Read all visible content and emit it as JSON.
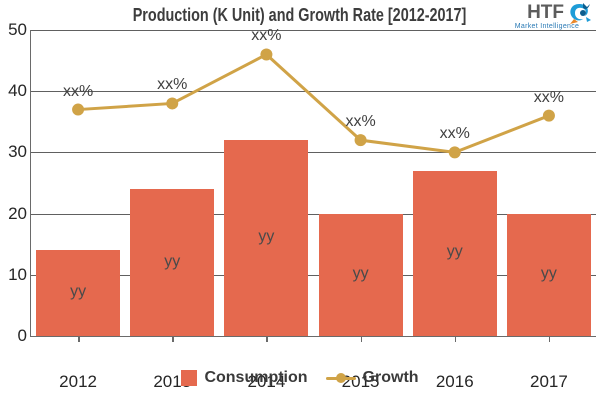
{
  "header": {
    "title": "Production (K Unit) and Growth Rate [2012-2017]"
  },
  "logo": {
    "text": "HTF",
    "subtext": "Market Intelligence",
    "icon": "htf-swirl-icon",
    "colors": {
      "text": "#5c5c5c",
      "subtext": "#2a7ab5",
      "icon_blue": "#1e9cd7",
      "icon_dark": "#0d5e8f",
      "icon_orange": "#e8872a"
    }
  },
  "chart_data": {
    "type": "bar",
    "subtype": "combo-bar-line",
    "title": "Production (K Unit) and Growth Rate [2012-2017]",
    "categories": [
      "2012",
      "2013",
      "2014",
      "2015",
      "2016",
      "2017"
    ],
    "series": [
      {
        "name": "Consumption",
        "type": "bar",
        "values": [
          14,
          24,
          32,
          20,
          27,
          20
        ],
        "point_label": "yy",
        "color": "#e5694e"
      },
      {
        "name": "Growth",
        "type": "line",
        "values": [
          37,
          38,
          46,
          32,
          30,
          36
        ],
        "point_label": "xx%",
        "color": "#d0a347"
      }
    ],
    "xlabel": "",
    "ylabel": "",
    "ylim": [
      0,
      50
    ],
    "yticks": [
      0,
      10,
      20,
      30,
      40,
      50
    ],
    "grid": true,
    "legend_position": "bottom",
    "colors": {
      "grid": "#606060",
      "axis": "#6a6a6a",
      "tick_text": "#262626",
      "point_label_text": "#3f3f3f"
    }
  },
  "legend": {
    "items": [
      {
        "label": "Consumption",
        "marker": "square"
      },
      {
        "label": "Growth",
        "marker": "line-dot"
      }
    ]
  }
}
